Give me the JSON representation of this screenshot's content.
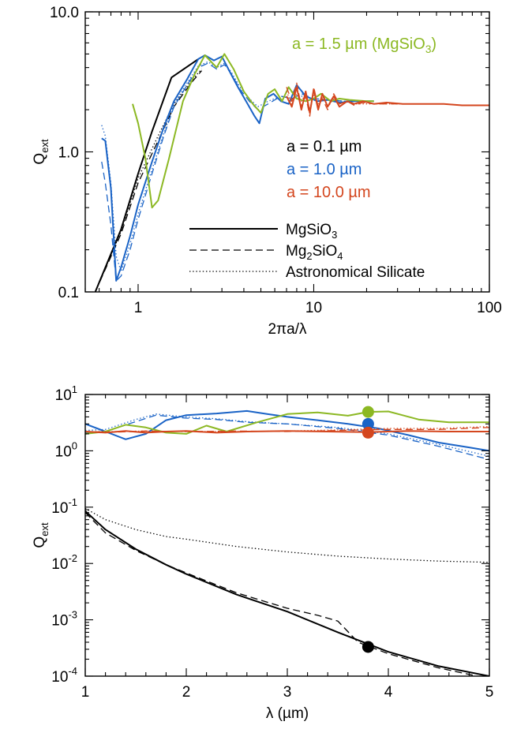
{
  "colors": {
    "a_0_1": "#000000",
    "a_1_0": "#1a63c6",
    "a_10_0": "#d4461e",
    "a_1_5": "#8cb823"
  },
  "linestyles": {
    "MgSiO3": "solid",
    "Mg2SiO4": "dashed",
    "Astronomical Silicate": "dotted"
  },
  "chart_data": [
    {
      "type": "line",
      "xlabel": "2πa/λ",
      "ylabel": "Q_ext",
      "xscale": "log",
      "yscale": "log",
      "xlim": [
        0.5,
        100
      ],
      "ylim": [
        0.1,
        10
      ],
      "xticks": [
        {
          "v": 1,
          "label": "1"
        },
        {
          "v": 10,
          "label": "10"
        },
        {
          "v": 100,
          "label": "100"
        }
      ],
      "yticks": [
        {
          "v": 0.1,
          "label": "0.1"
        },
        {
          "v": 1,
          "label": "1.0"
        },
        {
          "v": 10,
          "label": "10.0"
        }
      ],
      "grid": false,
      "annotations": [
        {
          "text": "a = 1.5 µm (MgSiO₃)",
          "color_key": "a_1_5"
        },
        {
          "text": "a = 0.1 µm",
          "color_key": "a_0_1"
        },
        {
          "text": "a = 1.0 µm",
          "color_key": "a_1_0"
        },
        {
          "text": "a = 10.0 µm",
          "color_key": "a_10_0"
        }
      ],
      "legend": {
        "position": "bottom-right",
        "entries": [
          {
            "label": "MgSiO₃",
            "style": "solid"
          },
          {
            "label": "Mg₂SiO₄",
            "style": "dashed"
          },
          {
            "label": "Astronomical Silicate",
            "style": "dotted"
          }
        ]
      },
      "series": [
        {
          "color_key": "a_0_1",
          "style": "solid",
          "x": [
            0.57,
            0.8,
            1.0,
            1.2,
            1.55,
            2.2
          ],
          "y": [
            0.1,
            0.28,
            0.7,
            1.4,
            3.4,
            4.6
          ]
        },
        {
          "color_key": "a_0_1",
          "style": "dashed",
          "x": [
            0.57,
            0.8,
            1.0,
            1.3,
            1.6,
            2.0,
            2.3
          ],
          "y": [
            0.1,
            0.26,
            0.6,
            1.2,
            2.1,
            3.1,
            3.8
          ]
        },
        {
          "color_key": "a_0_1",
          "style": "dotted",
          "x": [
            0.57,
            0.8,
            1.0,
            1.3,
            1.6,
            2.0,
            2.3
          ],
          "y": [
            0.1,
            0.27,
            0.65,
            1.3,
            2.2,
            3.2,
            3.9
          ]
        },
        {
          "color_key": "a_1_0",
          "style": "solid",
          "x": [
            0.62,
            0.65,
            0.7,
            0.75,
            0.8,
            0.9,
            1.0,
            1.2,
            1.4,
            1.6,
            1.9,
            2.2,
            2.4,
            2.7,
            3.0,
            3.3,
            3.7,
            4.2,
            4.6,
            4.9,
            5.3,
            5.9,
            6.5,
            7.2,
            8.0,
            9.0,
            10.5,
            12.0,
            14.0,
            17.0,
            20.0,
            22.0
          ],
          "y": [
            1.25,
            1.2,
            0.55,
            0.12,
            0.15,
            0.25,
            0.42,
            0.85,
            1.5,
            2.3,
            3.3,
            4.6,
            4.9,
            4.5,
            4.8,
            3.8,
            2.9,
            2.2,
            1.8,
            1.6,
            2.4,
            2.6,
            2.3,
            2.2,
            3.0,
            2.5,
            2.3,
            2.35,
            2.25,
            2.3,
            2.3,
            2.3
          ]
        },
        {
          "color_key": "a_1_0",
          "style": "dashed",
          "x": [
            0.62,
            0.65,
            0.7,
            0.75,
            0.8,
            0.9,
            1.0,
            1.2,
            1.4,
            1.6,
            1.9,
            2.2,
            2.5,
            2.8,
            3.1,
            3.4,
            3.8,
            4.3,
            4.8,
            5.5,
            6.5,
            7.5,
            8.5,
            10.0,
            12.0,
            15.0,
            20.0
          ],
          "y": [
            0.85,
            0.6,
            0.3,
            0.12,
            0.13,
            0.2,
            0.33,
            0.7,
            1.3,
            2.1,
            3.0,
            4.0,
            4.3,
            3.9,
            4.2,
            3.6,
            2.8,
            2.3,
            2.0,
            2.2,
            2.5,
            2.4,
            2.6,
            2.4,
            2.35,
            2.3,
            2.3
          ]
        },
        {
          "color_key": "a_1_0",
          "style": "dotted",
          "x": [
            0.62,
            0.65,
            0.7,
            0.75,
            0.8,
            0.9,
            1.0,
            1.2,
            1.4,
            1.6,
            1.9,
            2.2,
            2.5,
            2.8,
            3.1,
            3.4,
            3.8,
            4.3,
            4.8,
            5.5,
            6.5,
            7.5,
            8.5,
            10.0,
            12.0,
            15.0,
            20.0
          ],
          "y": [
            1.55,
            1.3,
            0.6,
            0.18,
            0.14,
            0.22,
            0.36,
            0.75,
            1.35,
            2.2,
            3.1,
            4.1,
            4.4,
            4.0,
            4.3,
            3.7,
            2.9,
            2.4,
            2.1,
            2.3,
            2.5,
            2.4,
            2.5,
            2.4,
            2.35,
            2.3,
            2.3
          ]
        },
        {
          "color_key": "a_1_5",
          "style": "solid",
          "x": [
            0.93,
            1.0,
            1.1,
            1.2,
            1.3,
            1.5,
            1.8,
            2.1,
            2.4,
            2.8,
            3.1,
            3.5,
            4.0,
            4.5,
            5.0,
            5.5,
            6.0,
            6.6,
            7.2,
            8.0,
            9.0,
            10.0,
            11.0,
            12.5,
            14.0,
            16.0,
            20.0,
            22.0
          ],
          "y": [
            2.2,
            1.6,
            0.9,
            0.4,
            0.45,
            0.9,
            2.3,
            3.6,
            4.9,
            4.0,
            5.0,
            3.9,
            2.7,
            2.2,
            1.9,
            2.6,
            2.8,
            2.3,
            2.9,
            2.4,
            2.3,
            2.4,
            2.6,
            2.3,
            2.4,
            2.35,
            2.3,
            2.3
          ]
        },
        {
          "color_key": "a_10_0",
          "style": "solid",
          "x": [
            7.0,
            7.5,
            8.0,
            8.5,
            9.0,
            9.5,
            10.0,
            10.6,
            11.2,
            12.0,
            13.0,
            14.0,
            15.5,
            17.0,
            19.0,
            22.0,
            26.0,
            32.0,
            40.0,
            55.0,
            70.0,
            85.0,
            100.0
          ],
          "y": [
            2.5,
            2.1,
            2.9,
            2.0,
            2.7,
            1.9,
            2.8,
            2.0,
            2.6,
            2.1,
            2.5,
            2.1,
            2.3,
            2.2,
            2.3,
            2.2,
            2.25,
            2.2,
            2.2,
            2.2,
            2.15,
            2.15,
            2.15
          ]
        },
        {
          "color_key": "a_10_0",
          "style": "dashed",
          "x": [
            7.0,
            7.5,
            8.0,
            8.5,
            9.0,
            9.5,
            10.0,
            10.6,
            11.2,
            12.0,
            13.0,
            14.0,
            15.5,
            17.0,
            19.0,
            22.0,
            26.0,
            32.0,
            40.0,
            55.0,
            70.0,
            85.0,
            100.0
          ],
          "y": [
            2.9,
            2.3,
            3.1,
            2.1,
            2.5,
            1.8,
            2.9,
            2.1,
            2.4,
            2.0,
            2.6,
            2.2,
            2.3,
            2.15,
            2.25,
            2.2,
            2.2,
            2.2,
            2.2,
            2.2,
            2.15,
            2.15,
            2.15
          ]
        },
        {
          "color_key": "a_10_0",
          "style": "dotted",
          "x": [
            7.0,
            7.5,
            8.0,
            8.5,
            9.0,
            9.5,
            10.0,
            10.6,
            11.2,
            12.0,
            13.0,
            14.0,
            15.5,
            17.0,
            19.0,
            22.0,
            26.0,
            32.0,
            40.0,
            55.0,
            70.0,
            85.0,
            100.0
          ],
          "y": [
            2.7,
            2.2,
            2.6,
            2.3,
            2.6,
            2.0,
            2.6,
            2.2,
            2.5,
            2.1,
            2.4,
            2.2,
            2.3,
            2.2,
            2.2,
            2.2,
            2.2,
            2.2,
            2.2,
            2.2,
            2.15,
            2.15,
            2.15
          ]
        }
      ]
    },
    {
      "type": "line",
      "xlabel": "λ (µm)",
      "ylabel": "Q_ext",
      "xscale": "linear",
      "yscale": "log",
      "xlim": [
        1,
        5
      ],
      "ylim": [
        0.0001,
        10
      ],
      "xticks": [
        {
          "v": 1,
          "label": "1"
        },
        {
          "v": 2,
          "label": "2"
        },
        {
          "v": 3,
          "label": "3"
        },
        {
          "v": 4,
          "label": "4"
        },
        {
          "v": 5,
          "label": "5"
        }
      ],
      "yticks": [
        {
          "v": 0.0001,
          "base": "10",
          "exp": "-4"
        },
        {
          "v": 0.001,
          "base": "10",
          "exp": "-3"
        },
        {
          "v": 0.01,
          "base": "10",
          "exp": "-2"
        },
        {
          "v": 0.1,
          "base": "10",
          "exp": "-1"
        },
        {
          "v": 1,
          "base": "10",
          "exp": "0"
        },
        {
          "v": 10,
          "base": "10",
          "exp": "1"
        }
      ],
      "grid": false,
      "markers": [
        {
          "x": 3.8,
          "y": 4.9,
          "color_key": "a_1_5"
        },
        {
          "x": 3.8,
          "y": 3.0,
          "color_key": "a_1_0"
        },
        {
          "x": 3.8,
          "y": 2.1,
          "color_key": "a_10_0"
        },
        {
          "x": 3.8,
          "y": 0.00033,
          "color_key": "a_0_1"
        }
      ],
      "series": [
        {
          "color_key": "a_0_1",
          "style": "solid",
          "x": [
            1.0,
            1.2,
            1.5,
            1.8,
            2.0,
            2.5,
            3.0,
            3.5,
            4.0,
            4.5,
            5.0
          ],
          "y": [
            0.085,
            0.04,
            0.018,
            0.0095,
            0.0065,
            0.0028,
            0.0014,
            0.0006,
            0.00027,
            0.00015,
            0.0001
          ]
        },
        {
          "color_key": "a_0_1",
          "style": "dashed",
          "x": [
            1.0,
            1.2,
            1.5,
            1.8,
            2.0,
            2.5,
            3.0,
            3.3,
            3.5,
            3.7,
            4.0,
            4.5,
            5.0
          ],
          "y": [
            0.08,
            0.035,
            0.017,
            0.0095,
            0.0068,
            0.003,
            0.0016,
            0.0012,
            0.00095,
            0.0004,
            0.00025,
            0.00014,
            9e-05
          ]
        },
        {
          "color_key": "a_0_1",
          "style": "dotted",
          "x": [
            1.0,
            1.2,
            1.5,
            1.8,
            2.0,
            2.5,
            3.0,
            3.5,
            4.0,
            4.5,
            5.0
          ],
          "y": [
            0.095,
            0.06,
            0.04,
            0.03,
            0.027,
            0.02,
            0.016,
            0.0135,
            0.012,
            0.011,
            0.0105
          ]
        },
        {
          "color_key": "a_1_0",
          "style": "solid",
          "x": [
            1.0,
            1.2,
            1.4,
            1.6,
            1.8,
            2.0,
            2.3,
            2.6,
            2.8,
            3.0,
            3.3,
            3.6,
            3.9,
            4.2,
            4.5,
            4.8,
            5.0
          ],
          "y": [
            3.0,
            2.2,
            1.6,
            2.0,
            3.5,
            4.3,
            4.6,
            5.1,
            4.5,
            4.0,
            3.5,
            3.0,
            2.5,
            1.9,
            1.4,
            1.15,
            1.0
          ]
        },
        {
          "color_key": "a_1_0",
          "style": "dashed",
          "x": [
            1.0,
            1.2,
            1.5,
            1.7,
            2.0,
            2.3,
            2.6,
            3.0,
            3.5,
            4.0,
            4.5,
            5.0
          ],
          "y": [
            2.1,
            2.2,
            3.3,
            4.3,
            3.8,
            3.6,
            3.2,
            3.0,
            2.5,
            1.9,
            1.2,
            0.7
          ]
        },
        {
          "color_key": "a_1_0",
          "style": "dotted",
          "x": [
            1.0,
            1.2,
            1.5,
            1.7,
            2.0,
            2.3,
            2.6,
            3.0,
            3.5,
            4.0,
            4.5,
            5.0
          ],
          "y": [
            2.3,
            2.4,
            3.6,
            4.5,
            4.0,
            3.7,
            3.3,
            3.0,
            2.6,
            2.0,
            1.3,
            0.8
          ]
        },
        {
          "color_key": "a_1_5",
          "style": "solid",
          "x": [
            1.0,
            1.2,
            1.4,
            1.6,
            1.8,
            2.0,
            2.2,
            2.4,
            2.7,
            3.0,
            3.3,
            3.6,
            3.8,
            4.0,
            4.3,
            4.6,
            5.0
          ],
          "y": [
            2.0,
            2.2,
            2.9,
            2.6,
            2.1,
            2.0,
            2.8,
            2.2,
            3.2,
            4.5,
            4.8,
            4.2,
            4.9,
            5.0,
            3.6,
            3.2,
            3.2
          ]
        },
        {
          "color_key": "a_10_0",
          "style": "solid",
          "x": [
            1.0,
            1.2,
            1.4,
            1.6,
            1.8,
            2.0,
            2.3,
            2.6,
            3.0,
            3.4,
            3.8,
            4.2,
            4.6,
            5.0
          ],
          "y": [
            2.2,
            2.1,
            2.25,
            2.1,
            2.2,
            2.25,
            2.1,
            2.2,
            2.25,
            2.2,
            2.15,
            2.25,
            2.2,
            2.2
          ]
        },
        {
          "color_key": "a_10_0",
          "style": "dashed",
          "x": [
            1.0,
            1.3,
            1.6,
            2.0,
            2.5,
            3.0,
            3.5,
            4.0,
            4.5,
            5.0
          ],
          "y": [
            2.2,
            2.15,
            2.25,
            2.2,
            2.25,
            2.2,
            2.3,
            2.4,
            2.4,
            2.6
          ]
        },
        {
          "color_key": "a_10_0",
          "style": "dotted",
          "x": [
            1.0,
            1.3,
            1.6,
            2.0,
            2.5,
            3.0,
            3.5,
            4.0,
            4.5,
            5.0
          ],
          "y": [
            2.2,
            2.2,
            2.25,
            2.2,
            2.2,
            2.25,
            2.35,
            2.5,
            2.5,
            2.7
          ]
        }
      ]
    }
  ]
}
